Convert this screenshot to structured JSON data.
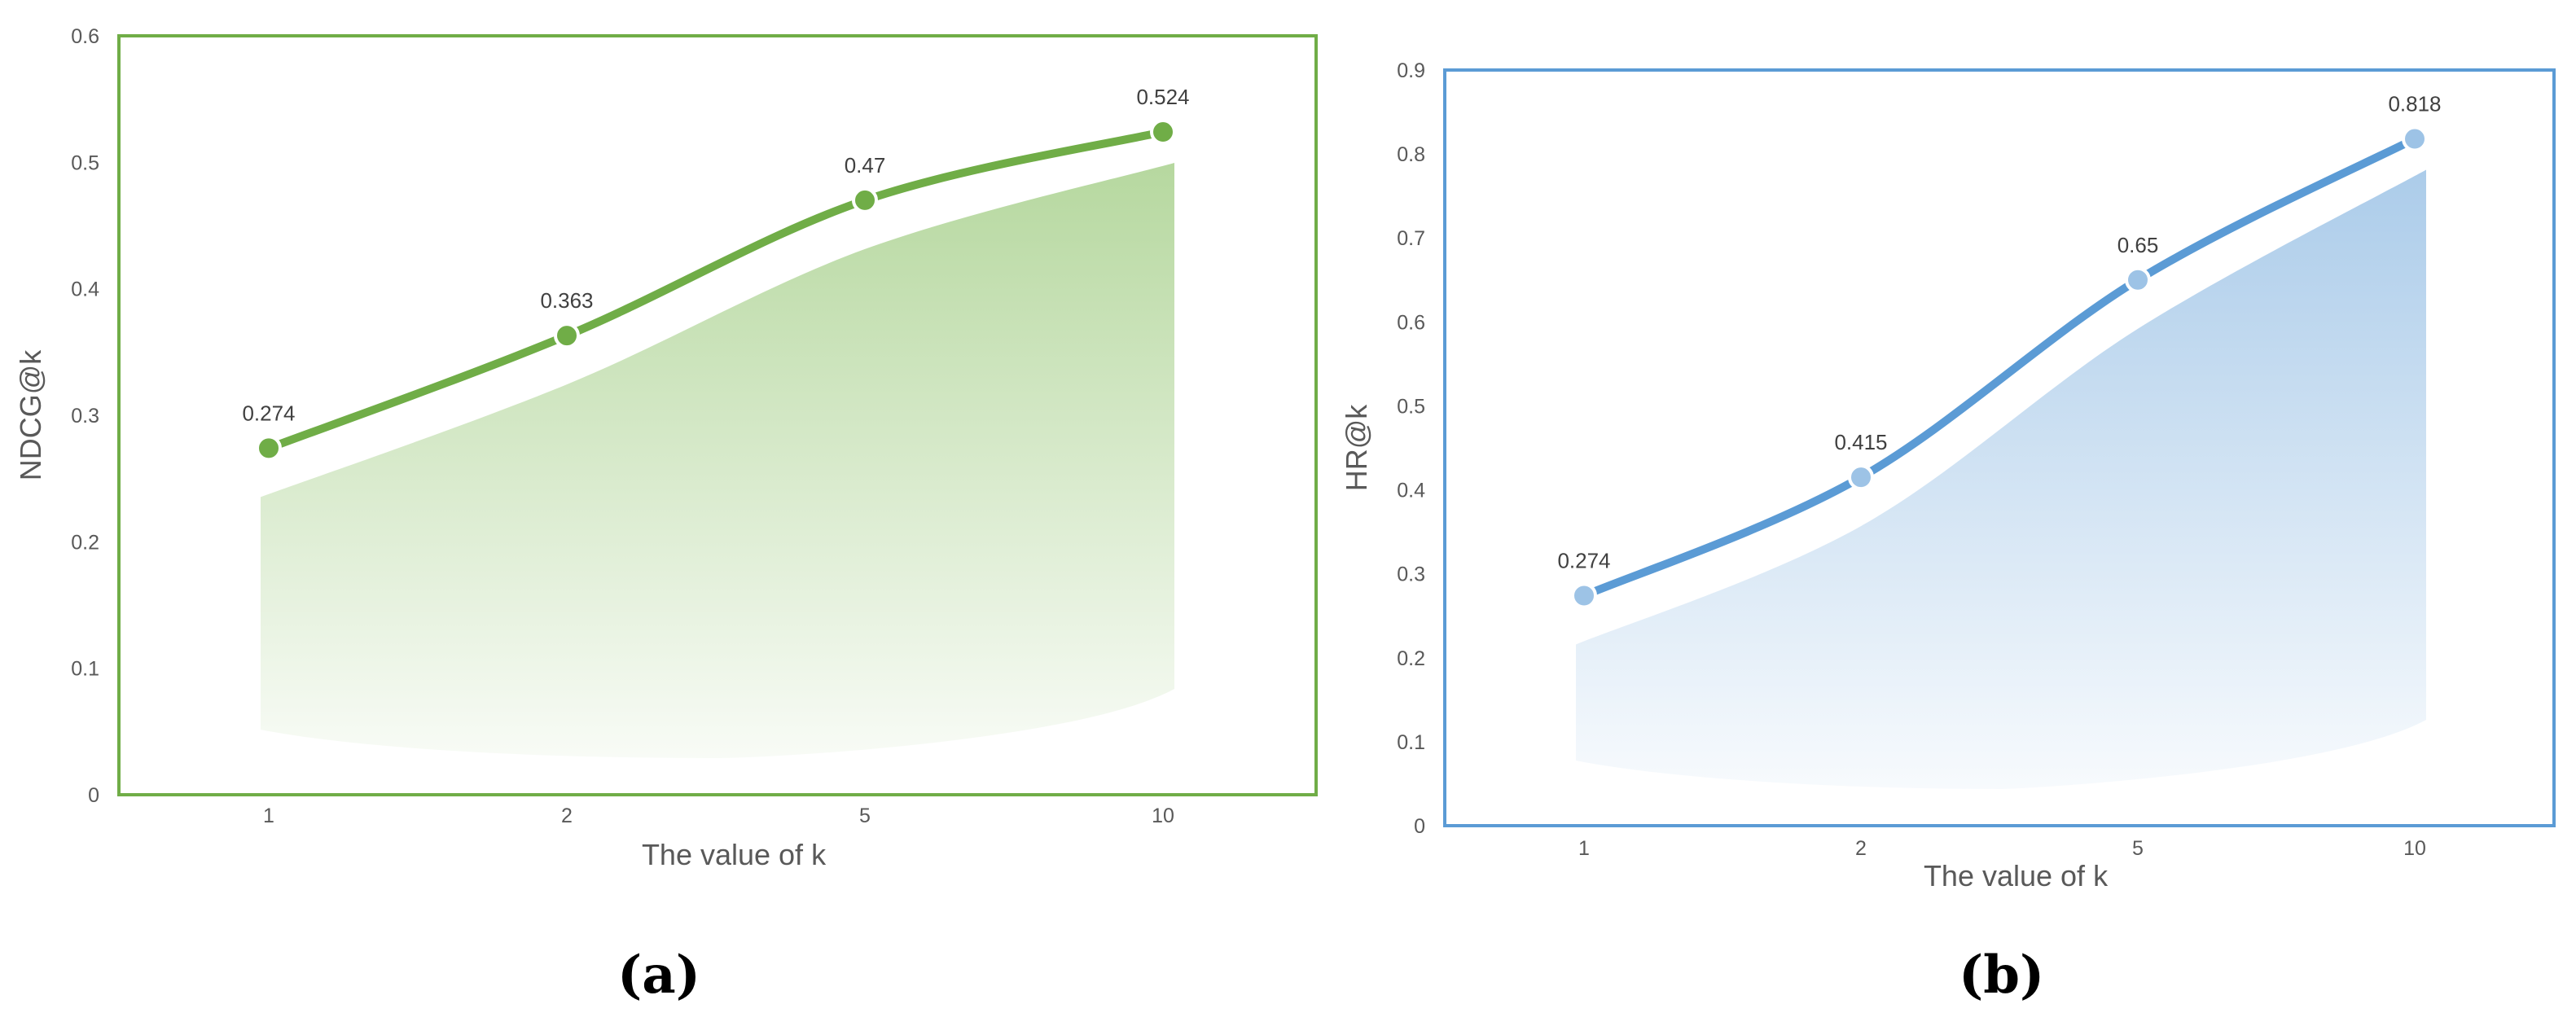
{
  "chart_data": [
    {
      "type": "line",
      "categories": [
        "1",
        "2",
        "5",
        "10"
      ],
      "series": [
        {
          "values": [
            0.274,
            0.363,
            0.47,
            0.524
          ]
        }
      ],
      "data_labels": [
        "0.274",
        "0.363",
        "0.47",
        "0.524"
      ],
      "xlabel": "The value of k",
      "ylabel": "NDCG@k",
      "ylim": [
        0,
        0.6
      ],
      "yticks": [
        "0",
        "0.1",
        "0.2",
        "0.3",
        "0.4",
        "0.5",
        "0.6"
      ],
      "grid": false,
      "area_fill": true,
      "color": "#70AD47",
      "area_color": "#A9D18E",
      "marker_color": "#70AD47",
      "caption": "(a)"
    },
    {
      "type": "line",
      "categories": [
        "1",
        "2",
        "5",
        "10"
      ],
      "series": [
        {
          "values": [
            0.274,
            0.415,
            0.65,
            0.818
          ]
        }
      ],
      "data_labels": [
        "0.274",
        "0.415",
        "0.65",
        "0.818"
      ],
      "xlabel": "The value of k",
      "ylabel": "HR@k",
      "ylim": [
        0,
        0.9
      ],
      "yticks": [
        "0",
        "0.1",
        "0.2",
        "0.3",
        "0.4",
        "0.5",
        "0.6",
        "0.7",
        "0.8",
        "0.9"
      ],
      "grid": false,
      "area_fill": true,
      "color": "#5B9BD5",
      "area_color": "#9DC3E6",
      "marker_color": "#9DC3E6",
      "caption": "(b)"
    }
  ]
}
